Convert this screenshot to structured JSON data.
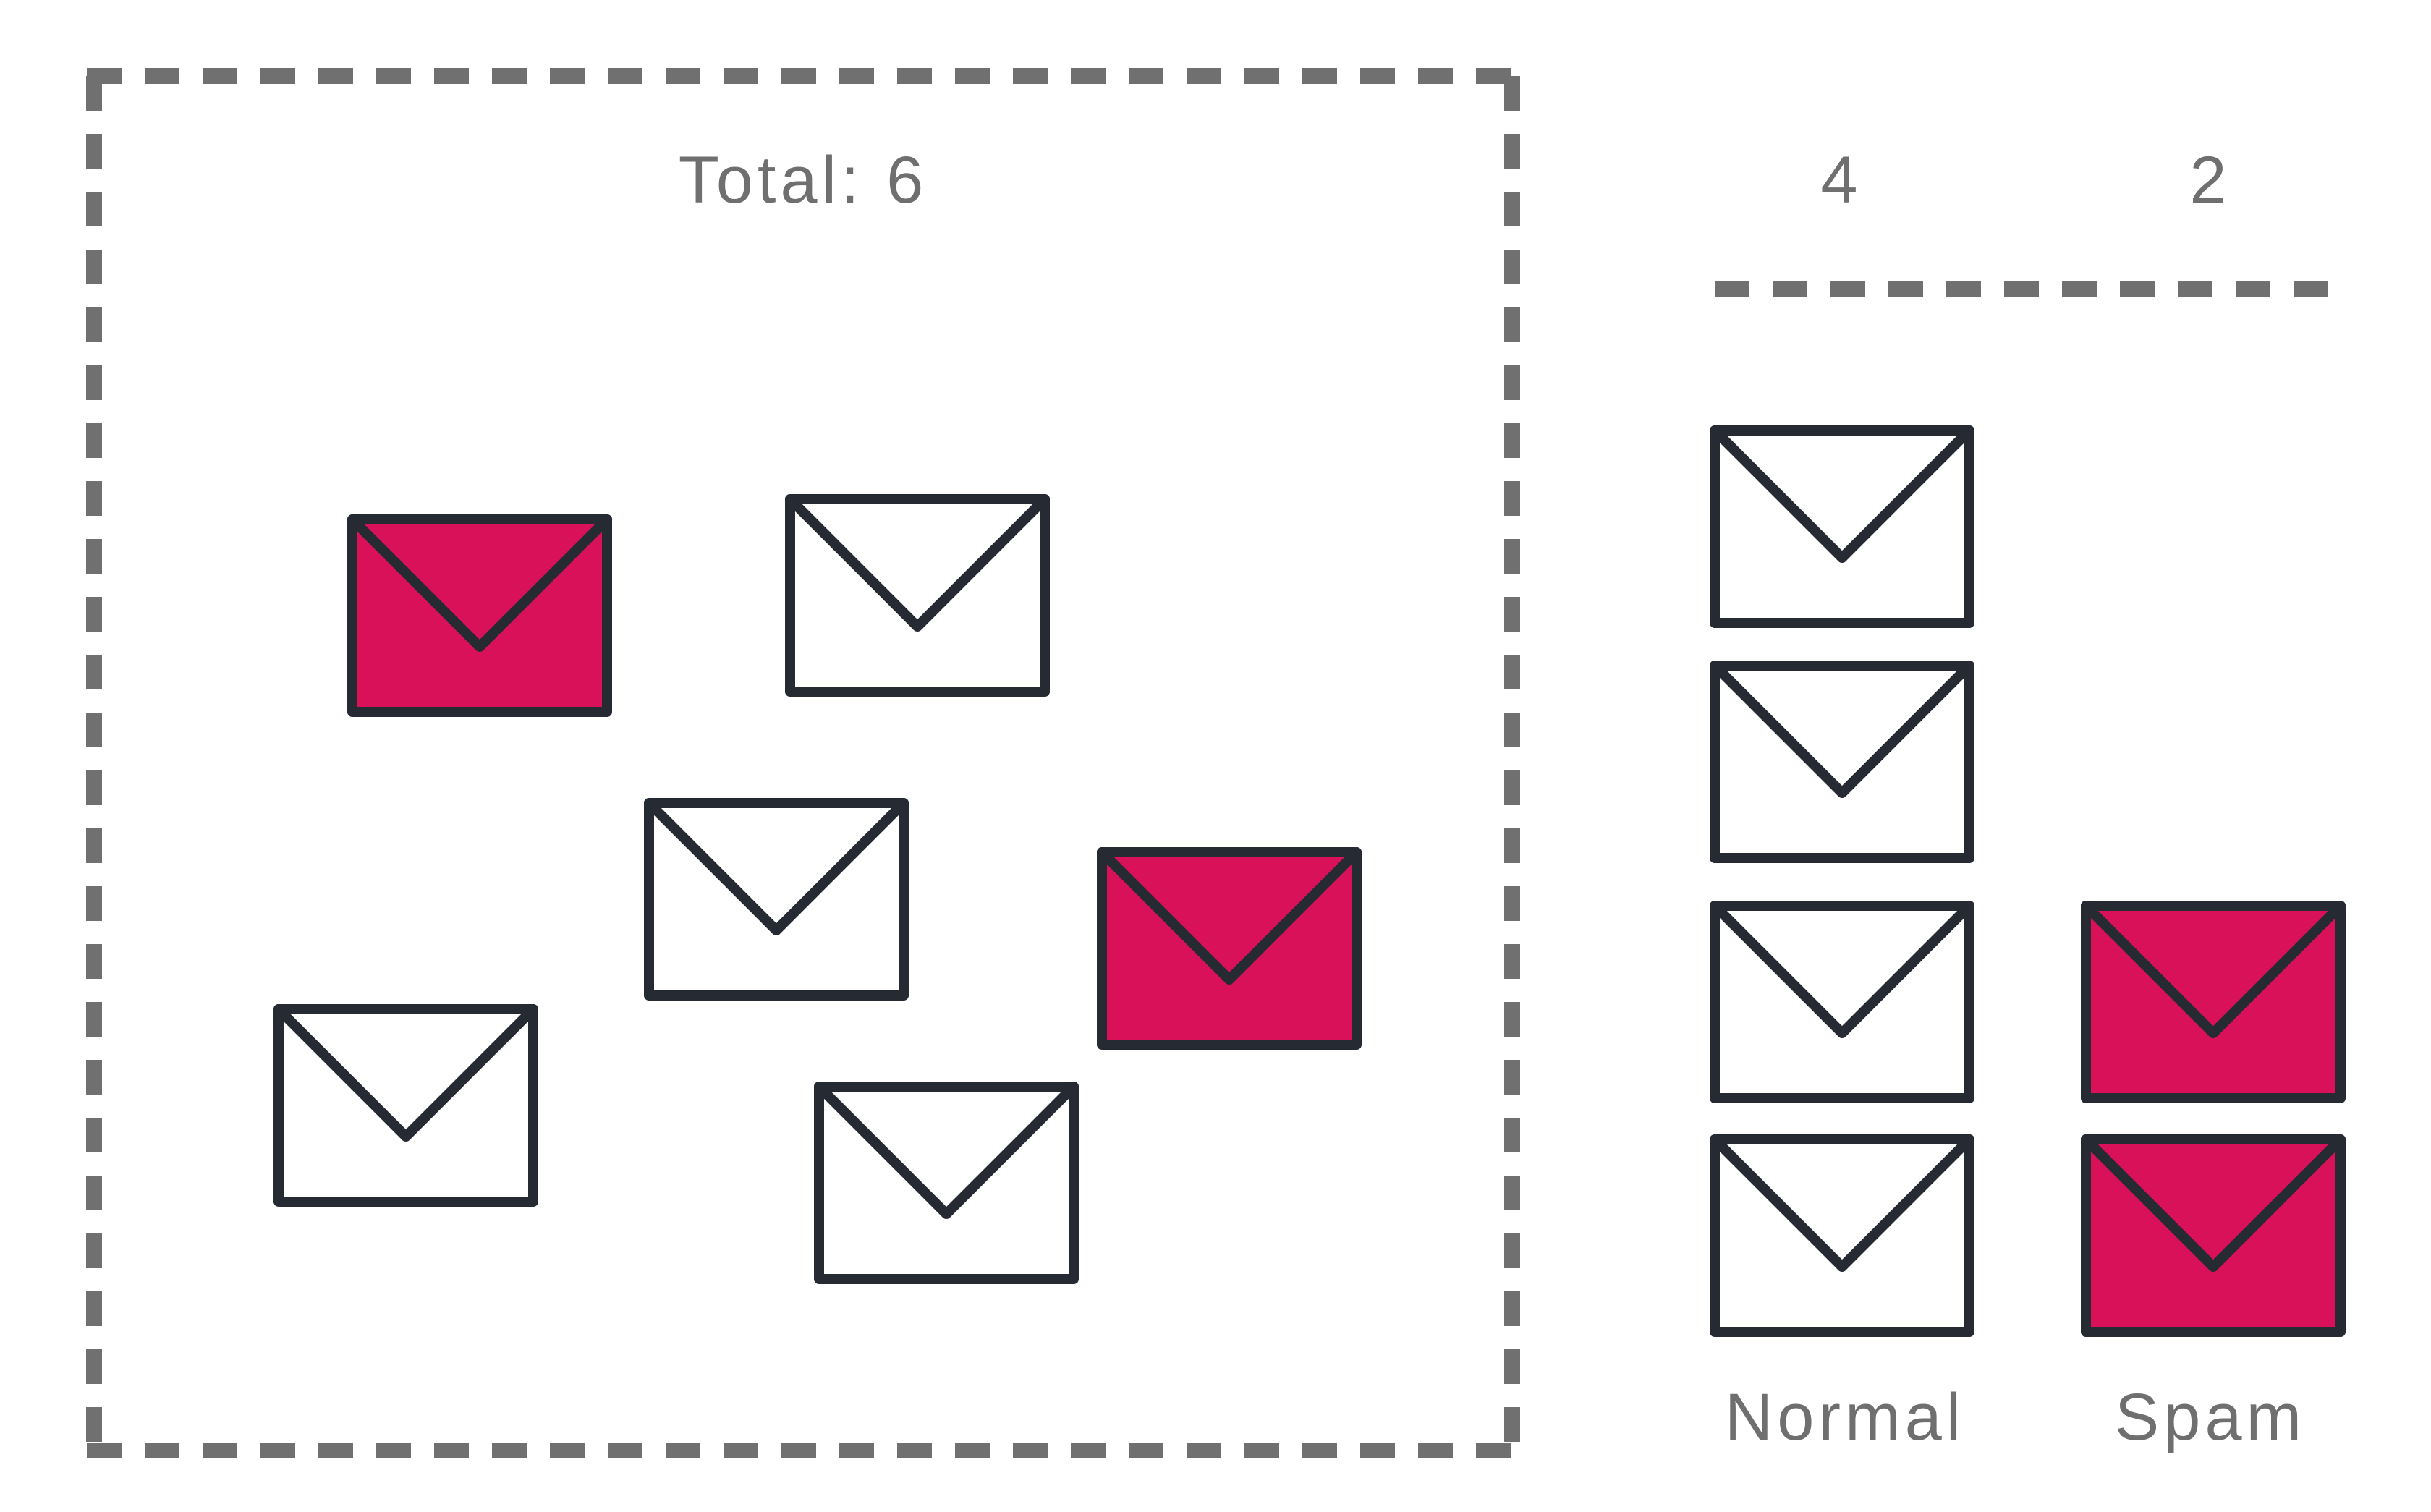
{
  "total_label": "Total: 6",
  "columns": [
    {
      "count": "4",
      "label": "Normal",
      "kind": "normal"
    },
    {
      "count": "2",
      "label": "Spam",
      "kind": "spam"
    }
  ],
  "colors": {
    "normal_fill": "#ffffff",
    "spam_fill": "#d81159",
    "outline": "#262b33",
    "dash": "#707070",
    "text": "#6f6f6f"
  }
}
